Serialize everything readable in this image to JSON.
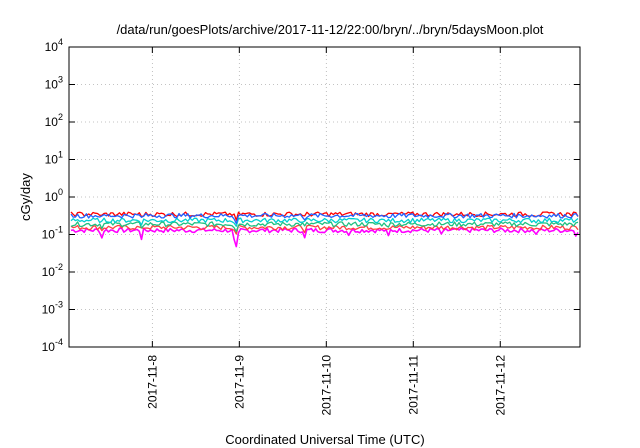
{
  "chart_data": {
    "type": "line",
    "title": "/data/run/goesPlots/archive/2017-11-12/22:00/bryn/../bryn/5daysMoon.plot",
    "xlabel": "Coordinated Universal Time (UTC)",
    "ylabel": "cGy/day",
    "yscale": "log",
    "ylim": [
      0.0001,
      10000
    ],
    "yticks": [
      {
        "base": "10",
        "exp": "-4",
        "value": 0.0001
      },
      {
        "base": "10",
        "exp": "-3",
        "value": 0.001
      },
      {
        "base": "10",
        "exp": "-2",
        "value": 0.01
      },
      {
        "base": "10",
        "exp": "-1",
        "value": 0.1
      },
      {
        "base": "10",
        "exp": "0",
        "value": 1
      },
      {
        "base": "10",
        "exp": "1",
        "value": 10
      },
      {
        "base": "10",
        "exp": "2",
        "value": 100
      },
      {
        "base": "10",
        "exp": "3",
        "value": 1000
      },
      {
        "base": "10",
        "exp": "4",
        "value": 10000
      }
    ],
    "xlim": [
      "2017-11-07T01:00",
      "2017-11-12T22:00"
    ],
    "xticks": [
      "2017-11-8",
      "2017-11-9",
      "2017-11-10",
      "2017-11-11",
      "2017-11-12"
    ],
    "xtick_dates": [
      "2017-11-08",
      "2017-11-09",
      "2017-11-10",
      "2017-11-11",
      "2017-11-12"
    ],
    "grid": true,
    "legend": "none",
    "series": [
      {
        "color": "#ff00ff",
        "baseline": 0.13
      },
      {
        "color": "#ff4040",
        "baseline": 0.155
      },
      {
        "color": "#20c080",
        "baseline": 0.19
      },
      {
        "color": "#00d0d0",
        "baseline": 0.24
      },
      {
        "color": "#ff0000",
        "baseline": 0.35
      },
      {
        "color": "#2060ff",
        "baseline": 0.32
      }
    ],
    "dips": [
      {
        "x": "2017-11-07T10:00",
        "value": 0.075
      },
      {
        "x": "2017-11-07T21:00",
        "value": 0.08
      },
      {
        "x": "2017-11-08T23:00",
        "value": 0.026
      },
      {
        "x": "2017-11-09T18:00",
        "value": 0.075
      },
      {
        "x": "2017-11-10T06:00",
        "value": 0.085
      },
      {
        "x": "2017-11-10T17:00",
        "value": 0.075
      },
      {
        "x": "2017-11-11T08:00",
        "value": 0.08
      },
      {
        "x": "2017-11-12T10:00",
        "value": 0.085
      },
      {
        "x": "2017-11-12T21:00",
        "value": 0.09
      }
    ]
  }
}
